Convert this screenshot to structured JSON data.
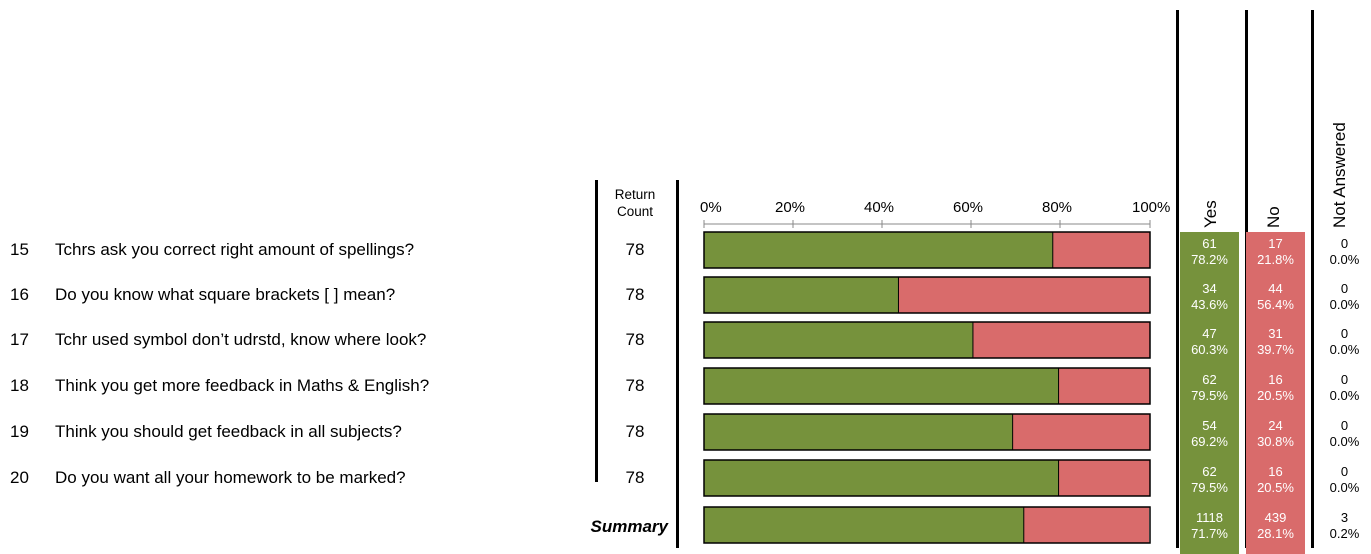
{
  "return_count_header": [
    "Return",
    "Count"
  ],
  "column_headers": {
    "yes": "Yes",
    "no": "No",
    "not_answered": "Not Answered"
  },
  "axis_ticks": [
    "0%",
    "20%",
    "40%",
    "60%",
    "80%",
    "100%"
  ],
  "summary_label": "Summary",
  "colors": {
    "yes": "#76923c",
    "no": "#d96b6b"
  },
  "rows": [
    {
      "num": "15",
      "question": "Tchrs ask you correct right amount of spellings?",
      "return_count": "78",
      "yes_count": "61",
      "yes_pct": "78.2%",
      "no_count": "17",
      "no_pct": "21.8%",
      "na_count": "0",
      "na_pct": "0.0%"
    },
    {
      "num": "16",
      "question": "Do you know what square brackets  [   ] mean?",
      "return_count": "78",
      "yes_count": "34",
      "yes_pct": "43.6%",
      "no_count": "44",
      "no_pct": "56.4%",
      "na_count": "0",
      "na_pct": "0.0%"
    },
    {
      "num": "17",
      "question": "Tchr used symbol don’t udrstd, know where look?",
      "return_count": "78",
      "yes_count": "47",
      "yes_pct": "60.3%",
      "no_count": "31",
      "no_pct": "39.7%",
      "na_count": "0",
      "na_pct": "0.0%"
    },
    {
      "num": "18",
      "question": "Think you get more feedback in Maths & English?",
      "return_count": "78",
      "yes_count": "62",
      "yes_pct": "79.5%",
      "no_count": "16",
      "no_pct": "20.5%",
      "na_count": "0",
      "na_pct": "0.0%"
    },
    {
      "num": "19",
      "question": "Think you should get feedback in all subjects?",
      "return_count": "78",
      "yes_count": "54",
      "yes_pct": "69.2%",
      "no_count": "24",
      "no_pct": "30.8%",
      "na_count": "0",
      "na_pct": "0.0%"
    },
    {
      "num": "20",
      "question": "Do you want all your homework to be marked?",
      "return_count": "78",
      "yes_count": "62",
      "yes_pct": "79.5%",
      "no_count": "16",
      "no_pct": "20.5%",
      "na_count": "0",
      "na_pct": "0.0%"
    }
  ],
  "summary": {
    "yes_count": "1118",
    "yes_pct": "71.7%",
    "no_count": "439",
    "no_pct": "28.1%",
    "na_count": "3",
    "na_pct": "0.2%"
  },
  "chart_data": {
    "type": "bar",
    "stacked": true,
    "orientation": "horizontal",
    "categories": [
      "15",
      "16",
      "17",
      "18",
      "19",
      "20",
      "Summary"
    ],
    "series": [
      {
        "name": "Yes",
        "values": [
          78.2,
          43.6,
          60.3,
          79.5,
          69.2,
          79.5,
          71.7
        ]
      },
      {
        "name": "No",
        "values": [
          21.8,
          56.4,
          39.7,
          20.5,
          30.8,
          20.5,
          28.1
        ]
      },
      {
        "name": "Not Answered",
        "values": [
          0.0,
          0.0,
          0.0,
          0.0,
          0.0,
          0.0,
          0.2
        ]
      }
    ],
    "xlim": [
      0,
      100
    ]
  }
}
